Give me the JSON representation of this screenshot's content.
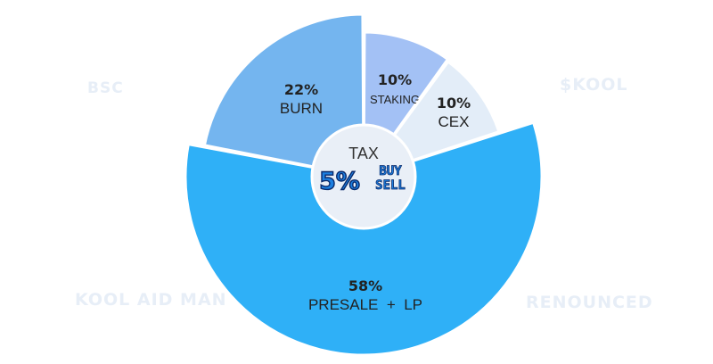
{
  "side_labels": {
    "top_left": "BSC",
    "top_right": "$KOOL",
    "bottom_left": "KOOL AID MAN",
    "bottom_right": "RENOUNCED"
  },
  "chart_data": {
    "type": "pie",
    "slices": [
      {
        "pct_label": "10%",
        "name": "STAKING",
        "value": 10,
        "color": "#a3c1f5",
        "outer": "large"
      },
      {
        "pct_label": "10%",
        "name": "CEX",
        "value": 10,
        "color": "#e3edf8",
        "outer": "small"
      },
      {
        "pct_label": "58%",
        "name": "PRESALE  +  LP",
        "value": 58,
        "color": "#2fb0f7",
        "outer": "large"
      },
      {
        "pct_label": "22%",
        "name": "BURN",
        "value": 22,
        "color": "#74b5ef",
        "outer": "large"
      }
    ],
    "center": {
      "title": "TAX",
      "tax": "5%",
      "buy": "BUY",
      "sell": "SELL"
    },
    "colors": {
      "center_fill": "#e9eff7",
      "tax_blue": "#1c7fe0",
      "tax_outline": "#0a2a6b"
    }
  }
}
